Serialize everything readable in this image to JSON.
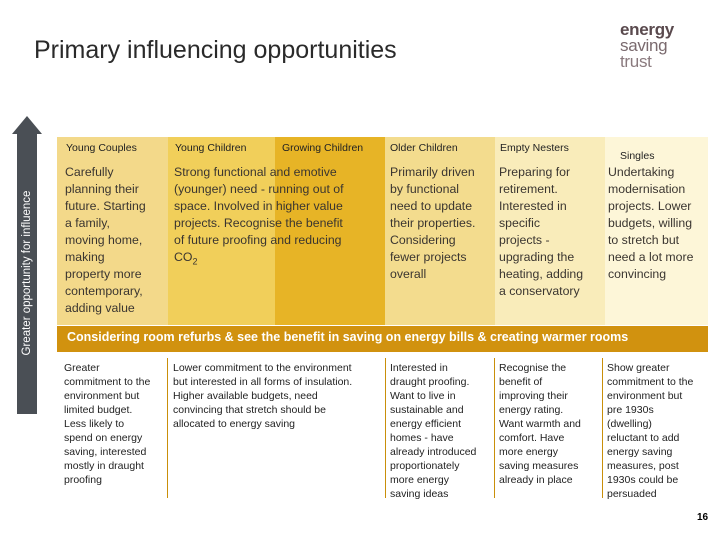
{
  "title": "Primary influencing opportunities",
  "logo": {
    "line1": "energy",
    "line2": "saving",
    "line3": "trust"
  },
  "axis_label": "Greater opportunity for influence",
  "headers": {
    "young_couples": "Young Couples",
    "young_children": "Young Children",
    "growing_children": "Growing Children",
    "older_children": "Older Children",
    "empty_nesters": "Empty Nesters",
    "singles": "Singles"
  },
  "upper": {
    "young_couples": [
      "Carefully",
      "planning their",
      "future. Starting",
      "a family,",
      "moving home,",
      "making",
      "property more",
      "contemporary,",
      "adding value"
    ],
    "young_growing": [
      "Strong functional and emotive",
      "(younger) need - running out of",
      "space. Involved in higher value",
      "projects. Recognise the benefit",
      "of future proofing and reducing"
    ],
    "co2_main": "CO",
    "co2_sub": "2",
    "older_children": [
      "Primarily driven",
      "by functional",
      "need to update",
      "their properties.",
      "Considering",
      "fewer projects",
      "overall"
    ],
    "empty_nesters": [
      "Preparing for",
      "retirement.",
      "Interested in",
      "specific",
      "projects -",
      "upgrading the",
      "heating, adding",
      "a conservatory"
    ],
    "singles": [
      "Undertaking",
      "modernisation",
      "projects. Lower",
      "budgets, willing",
      "to stretch but",
      "need a lot more",
      "convincing"
    ]
  },
  "banner": "Considering room refurbs & see the benefit in saving on energy bills & creating warmer rooms",
  "lower": {
    "young_couples": [
      "Greater",
      "commitment to the",
      "environment but",
      "limited budget.",
      "Less likely to",
      "spend on energy",
      "saving, interested",
      "mostly in draught",
      "proofing"
    ],
    "young_growing": [
      "Lower commitment to the environment",
      "but interested in all forms of insulation.",
      "Higher available budgets, need",
      "convincing that stretch should be",
      "allocated to energy saving"
    ],
    "older_children": [
      "Interested in",
      "draught proofing.",
      "Want to live in",
      "sustainable and",
      "energy efficient",
      "homes - have",
      "already introduced",
      "proportionately",
      "more energy",
      "saving ideas"
    ],
    "empty_nesters": [
      "Recognise the",
      "benefit of",
      "improving their",
      "energy rating.",
      "Want warmth and",
      "comfort. Have",
      "more energy",
      "saving measures",
      "already in place"
    ],
    "singles": [
      "Show greater",
      "commitment to the",
      "environment but",
      "pre 1930s",
      "(dwelling)",
      "reluctant to add",
      "energy saving",
      "measures, post",
      "1930s could be",
      "persuaded"
    ]
  },
  "page_number": "16",
  "colors": {
    "band_young_couples": "#f3d98a",
    "band_young_children": "#f1cf5a",
    "band_growing_children": "#e7b426",
    "band_older_children": "#f3dc8e",
    "band_empty_nesters": "#f9ecba",
    "band_singles": "#fdf6d8",
    "banner": "#d1920f",
    "axis": "#4a4f55"
  }
}
